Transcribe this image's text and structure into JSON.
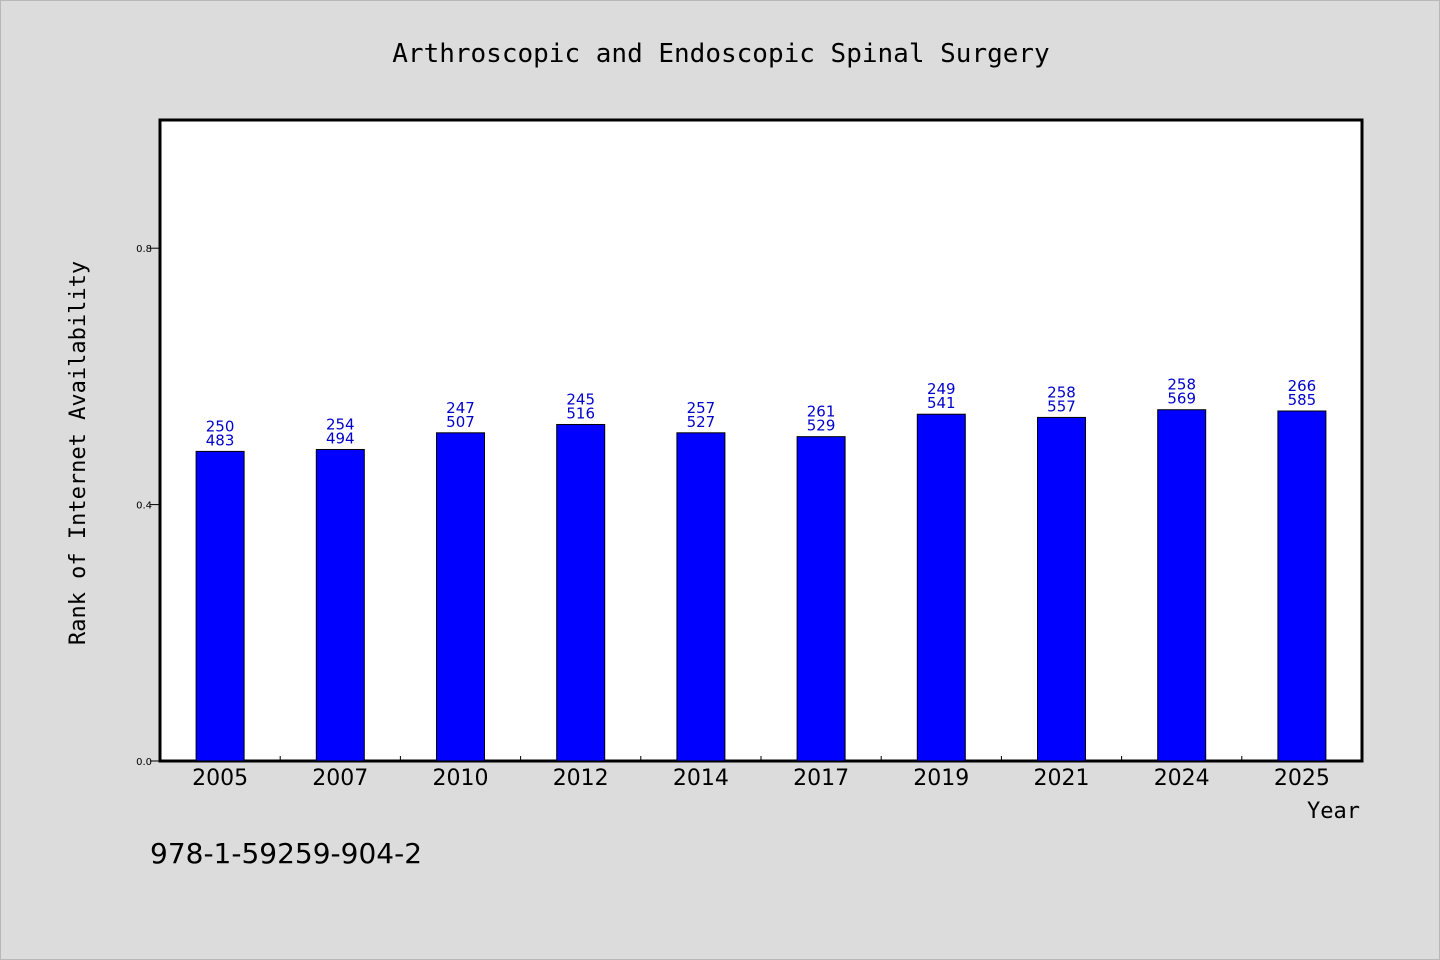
{
  "chart_data": {
    "type": "bar",
    "title": "Arthroscopic and Endoscopic Spinal Surgery",
    "xlabel": "Year",
    "ylabel": "Rank of Internet Availability",
    "ylim": [
      0,
      1.0
    ],
    "yticks": [
      "0.0",
      "0.4",
      "0.8"
    ],
    "ytick_values": [
      0.0,
      0.4,
      0.8
    ],
    "categories": [
      "2005",
      "2007",
      "2010",
      "2012",
      "2014",
      "2017",
      "2019",
      "2021",
      "2024",
      "2025"
    ],
    "values": [
      0.483,
      0.486,
      0.512,
      0.525,
      0.512,
      0.506,
      0.541,
      0.536,
      0.548,
      0.546
    ],
    "bar_labels_top": [
      "250",
      "254",
      "247",
      "245",
      "257",
      "261",
      "249",
      "258",
      "258",
      "266"
    ],
    "bar_labels_bottom": [
      "483",
      "494",
      "507",
      "516",
      "527",
      "529",
      "541",
      "557",
      "569",
      "585"
    ],
    "grid": false,
    "bar_color": "#0000ff",
    "label_color": "#0000cc"
  },
  "footer": {
    "isbn": "978-1-59259-904-2"
  }
}
